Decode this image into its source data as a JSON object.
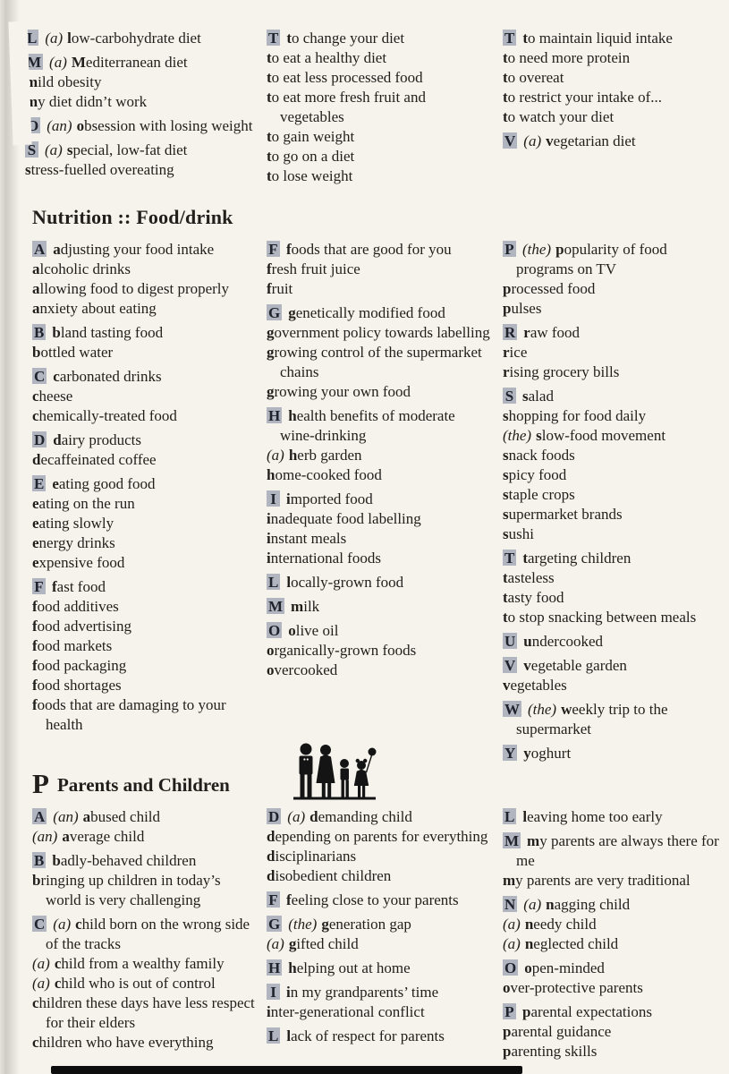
{
  "page": {
    "background": "#f6f3ec",
    "text_color": "#211f1c",
    "highlight_bg": "#b0b5bf"
  },
  "top_section": {
    "columns": [
      [
        {
          "prefix": "L",
          "article": "(a)",
          "text": "low-carbohydrate diet"
        },
        {
          "prefix": "M",
          "article": "(a)",
          "text": "Mediterranean diet"
        },
        {
          "text": "mild obesity"
        },
        {
          "text": "my diet didn’t work"
        },
        {
          "prefix": "O",
          "article": "(an)",
          "text": "obsession with losing weight"
        },
        {
          "prefix": "S",
          "article": "(a)",
          "text": "special, low-fat diet"
        },
        {
          "text": "stress-fuelled overeating"
        }
      ],
      [
        {
          "prefix": "T",
          "text": "to change your diet"
        },
        {
          "text": "to eat a healthy diet"
        },
        {
          "text": "to eat less processed food"
        },
        {
          "text": "to eat more fresh fruit and vegetables"
        },
        {
          "text": "to gain weight"
        },
        {
          "text": "to go on a diet"
        },
        {
          "text": "to lose weight"
        }
      ],
      [
        {
          "prefix": "T",
          "text": "to maintain liquid intake"
        },
        {
          "text": "to need more protein"
        },
        {
          "text": "to overeat"
        },
        {
          "text": "to restrict your intake of..."
        },
        {
          "text": "to watch your diet"
        },
        {
          "prefix": "V",
          "article": "(a)",
          "text": "vegetarian diet"
        }
      ]
    ]
  },
  "nutrition": {
    "title": "Nutrition :: Food/drink",
    "columns": [
      [
        {
          "prefix": "A",
          "text": "adjusting your food intake"
        },
        {
          "text": "alcoholic drinks"
        },
        {
          "text": "allowing food to digest properly"
        },
        {
          "text": "anxiety about eating"
        },
        {
          "prefix": "B",
          "text": "bland tasting food"
        },
        {
          "text": "bottled water"
        },
        {
          "prefix": "C",
          "text": "carbonated drinks"
        },
        {
          "text": "cheese"
        },
        {
          "text": "chemically-treated food"
        },
        {
          "prefix": "D",
          "text": "dairy products"
        },
        {
          "text": "decaffeinated coffee"
        },
        {
          "prefix": "E",
          "text": "eating good food"
        },
        {
          "text": "eating on the run"
        },
        {
          "text": "eating slowly"
        },
        {
          "text": "energy drinks"
        },
        {
          "text": "expensive food"
        },
        {
          "prefix": "F",
          "text": "fast food"
        },
        {
          "text": "food additives"
        },
        {
          "text": "food advertising"
        },
        {
          "text": "food markets"
        },
        {
          "text": "food packaging"
        },
        {
          "text": "food shortages"
        },
        {
          "text": "foods that are damaging to your health"
        }
      ],
      [
        {
          "prefix": "F",
          "text": "foods that are good for you"
        },
        {
          "text": "fresh fruit juice"
        },
        {
          "text": "fruit"
        },
        {
          "prefix": "G",
          "text": "genetically modified food"
        },
        {
          "text": "government policy towards labelling"
        },
        {
          "text": "growing control of the supermarket chains"
        },
        {
          "text": "growing your own food"
        },
        {
          "prefix": "H",
          "text": "health benefits of moderate wine-drinking"
        },
        {
          "article": "(a)",
          "text": "herb garden"
        },
        {
          "text": "home-cooked food"
        },
        {
          "prefix": "I",
          "text": "imported food"
        },
        {
          "text": "inadequate food labelling"
        },
        {
          "text": "instant meals"
        },
        {
          "text": "international foods"
        },
        {
          "prefix": "L",
          "text": "locally-grown food"
        },
        {
          "prefix": "M",
          "text": "milk"
        },
        {
          "prefix": "O",
          "text": "olive oil"
        },
        {
          "text": "organically-grown foods"
        },
        {
          "text": "overcooked"
        }
      ],
      [
        {
          "prefix": "P",
          "article": "(the)",
          "text": "popularity of food programs on TV"
        },
        {
          "text": "processed food"
        },
        {
          "text": "pulses"
        },
        {
          "prefix": "R",
          "text": "raw food"
        },
        {
          "text": "rice"
        },
        {
          "text": "rising grocery bills"
        },
        {
          "prefix": "S",
          "text": "salad"
        },
        {
          "text": "shopping for food daily"
        },
        {
          "article": "(the)",
          "text": "slow-food movement"
        },
        {
          "text": "snack foods"
        },
        {
          "text": "spicy food"
        },
        {
          "text": "staple crops"
        },
        {
          "text": "supermarket brands"
        },
        {
          "text": "sushi"
        },
        {
          "prefix": "T",
          "text": "targeting children"
        },
        {
          "text": "tasteless"
        },
        {
          "text": "tasty food"
        },
        {
          "text": "to stop snacking between meals"
        },
        {
          "prefix": "U",
          "text": "undercooked"
        },
        {
          "prefix": "V",
          "text": "vegetable garden"
        },
        {
          "text": "vegetables"
        },
        {
          "prefix": "W",
          "article": "(the)",
          "text": "weekly trip to the supermarket"
        },
        {
          "prefix": "Y",
          "text": "yoghurt"
        }
      ]
    ]
  },
  "parents": {
    "title_letter": "P",
    "title": "Parents and Children",
    "icon": "family-pictogram-icon",
    "columns": [
      [
        {
          "prefix": "A",
          "article": "(an)",
          "text": "abused child"
        },
        {
          "article": "(an)",
          "text": "average child"
        },
        {
          "prefix": "B",
          "text": "badly-behaved children"
        },
        {
          "text": "bringing up children in today’s world is very challenging"
        },
        {
          "prefix": "C",
          "article": "(a)",
          "text": "child born on the wrong side of the tracks"
        },
        {
          "article": "(a)",
          "text": "child from a wealthy family"
        },
        {
          "article": "(a)",
          "text": "child who is out of control"
        },
        {
          "text": "children these days have less respect for their elders"
        },
        {
          "text": "children who have everything"
        }
      ],
      [
        {
          "prefix": "D",
          "article": "(a)",
          "text": "demanding child"
        },
        {
          "text": "depending on parents for everything"
        },
        {
          "text": "disciplinarians"
        },
        {
          "text": "disobedient children"
        },
        {
          "prefix": "F",
          "text": "feeling close to your parents"
        },
        {
          "prefix": "G",
          "article": "(the)",
          "text": "generation gap"
        },
        {
          "article": "(a)",
          "text": "gifted child"
        },
        {
          "prefix": "H",
          "text": "helping out at home"
        },
        {
          "prefix": "I",
          "text": "in my grandparents’ time"
        },
        {
          "text": "inter-generational conflict"
        },
        {
          "prefix": "L",
          "text": "lack of respect for parents"
        }
      ],
      [
        {
          "prefix": "L",
          "text": "leaving home too early"
        },
        {
          "prefix": "M",
          "text": "my parents are always there for me"
        },
        {
          "text": "my parents are very traditional"
        },
        {
          "prefix": "N",
          "article": "(a)",
          "text": "nagging child"
        },
        {
          "article": "(a)",
          "text": "needy child"
        },
        {
          "article": "(a)",
          "text": "neglected child"
        },
        {
          "prefix": "O",
          "text": "open-minded"
        },
        {
          "text": "over-protective parents"
        },
        {
          "prefix": "P",
          "text": "parental expectations"
        },
        {
          "text": "parental guidance"
        },
        {
          "text": "parenting skills"
        }
      ]
    ]
  }
}
